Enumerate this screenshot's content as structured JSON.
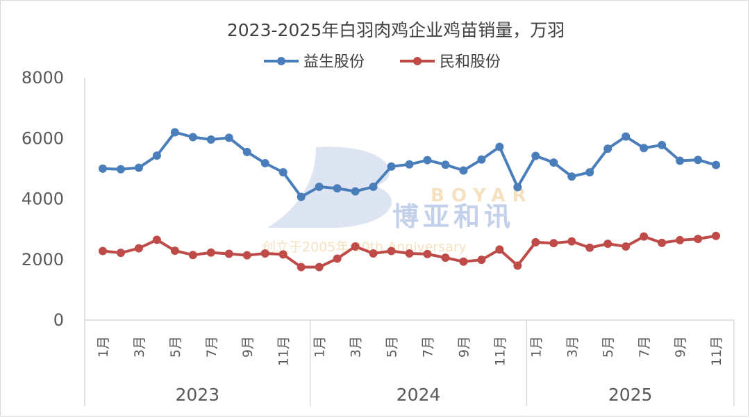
{
  "chart_data": {
    "type": "line",
    "title": "2023-2025年白羽肉鸡企业鸡苗销量，万羽",
    "legend_position": "top",
    "grid": false,
    "ylim": [
      0,
      8000
    ],
    "yticks": [
      "0",
      "2000",
      "4000",
      "6000",
      "8000"
    ],
    "x_month_labels": [
      "1月",
      "",
      "3月",
      "",
      "5月",
      "",
      "7月",
      "",
      "9月",
      "",
      "11月",
      "",
      "1月",
      "",
      "3月",
      "",
      "5月",
      "",
      "7月",
      "",
      "9月",
      "",
      "11月",
      "",
      "1月",
      "",
      "3月",
      "",
      "5月",
      "",
      "7月",
      "",
      "9月",
      "",
      "11月"
    ],
    "year_groups": [
      {
        "label": "2023",
        "count": 12
      },
      {
        "label": "2024",
        "count": 12
      },
      {
        "label": "2025",
        "count": 11
      }
    ],
    "series": [
      {
        "name": "益生股份",
        "color": "#4a7ebb",
        "values": [
          5000,
          4980,
          5030,
          5430,
          6200,
          6040,
          5960,
          6020,
          5550,
          5180,
          4880,
          4070,
          4400,
          4350,
          4250,
          4400,
          5070,
          5140,
          5280,
          5130,
          4940,
          5300,
          5720,
          4390,
          5420,
          5200,
          4740,
          4880,
          5660,
          6060,
          5680,
          5780,
          5260,
          5290,
          5120
        ]
      },
      {
        "name": "民和股份",
        "color": "#be4b48",
        "values": [
          2280,
          2220,
          2370,
          2650,
          2290,
          2150,
          2230,
          2190,
          2140,
          2200,
          2170,
          1750,
          1750,
          2030,
          2430,
          2200,
          2280,
          2200,
          2180,
          2060,
          1930,
          1990,
          2330,
          1800,
          2570,
          2540,
          2600,
          2390,
          2520,
          2430,
          2760,
          2550,
          2640,
          2680,
          2780
        ]
      }
    ]
  },
  "watermark": {
    "brand_en": "BOYAR",
    "brand_cn": "博亚和讯",
    "tagline": "创立于2005年 20th Anniversary"
  }
}
